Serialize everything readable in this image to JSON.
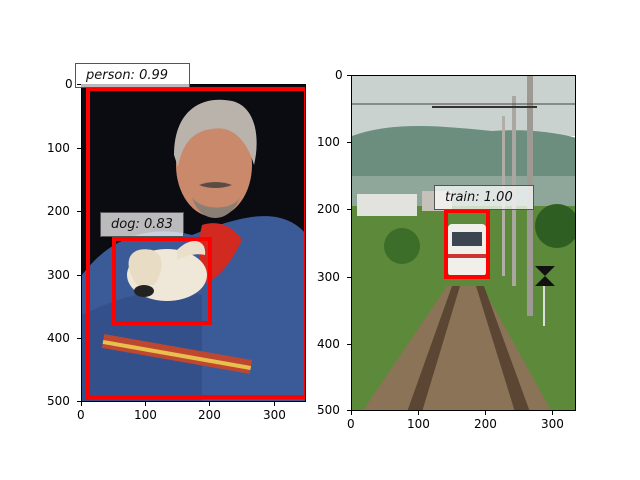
{
  "panels": [
    {
      "name": "left",
      "image_desc": "man with dog",
      "x_ticks": [
        "0",
        "100",
        "200",
        "300"
      ],
      "y_ticks": [
        "0",
        "100",
        "200",
        "300",
        "400",
        "500"
      ],
      "detections": [
        {
          "label": "person: 0.99"
        },
        {
          "label": "dog: 0.83"
        }
      ]
    },
    {
      "name": "right",
      "image_desc": "train on tracks",
      "x_ticks": [
        "0",
        "100",
        "200",
        "300"
      ],
      "y_ticks": [
        "0",
        "100",
        "200",
        "300",
        "400",
        "500"
      ],
      "detections": [
        {
          "label": "train: 1.00"
        }
      ]
    }
  ],
  "colors": {
    "box": "#ff0000"
  }
}
